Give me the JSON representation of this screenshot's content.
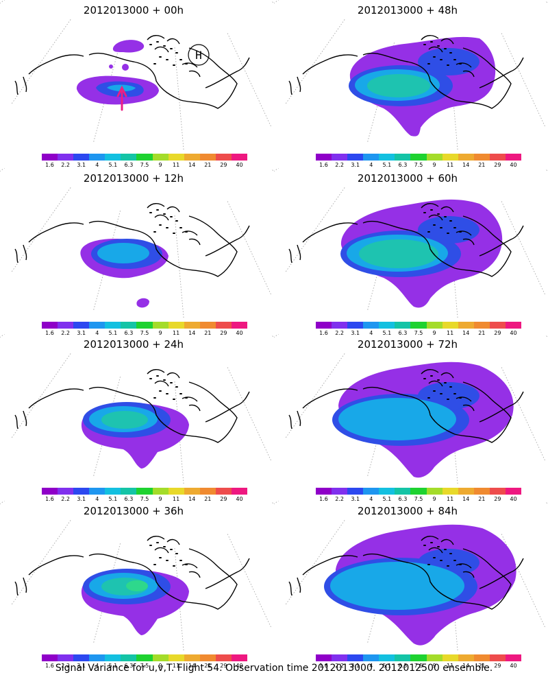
{
  "colors": {
    "scale": [
      "#8f00c8",
      "#8030ee",
      "#2c48f0",
      "#1e96f0",
      "#13c0e0",
      "#14c4a6",
      "#1ed230",
      "#a4dc2a",
      "#e8d92a",
      "#eeaa30",
      "#f08a30",
      "#ee4c4c",
      "#ee1880"
    ],
    "purple": "#9530e6",
    "blue": "#2f4ee6",
    "cyan": "#18a8e8",
    "teal": "#1ec3b0",
    "green": "#2ed88c",
    "magenta": "#ec1e84"
  },
  "colorbar_labels": [
    "1.6",
    "2.2",
    "3.1",
    "4",
    "5.1",
    "6.3",
    "7.5",
    "9",
    "11",
    "14",
    "21",
    "29",
    "40"
  ],
  "panels": [
    {
      "title": "2012013000 + 00h",
      "intensity": 1,
      "extent": 0,
      "marker": true
    },
    {
      "title": "2012013000 + 48h",
      "intensity": 3,
      "extent": 3,
      "marker": false
    },
    {
      "title": "2012013000 + 12h",
      "intensity": 2,
      "extent": 1,
      "marker": false
    },
    {
      "title": "2012013000 + 60h",
      "intensity": 3,
      "extent": 4,
      "marker": false
    },
    {
      "title": "2012013000 + 24h",
      "intensity": 3,
      "extent": 2,
      "marker": false
    },
    {
      "title": "2012013000 + 72h",
      "intensity": 2,
      "extent": 5,
      "marker": false
    },
    {
      "title": "2012013000 + 36h",
      "intensity": 4,
      "extent": 2,
      "marker": false
    },
    {
      "title": "2012013000 + 84h",
      "intensity": 2,
      "extent": 6,
      "marker": false
    }
  ],
  "caption": "Signal Variance for u,v,T. Flight 54. Observation time 2012013000. 2012012500 ensemble."
}
